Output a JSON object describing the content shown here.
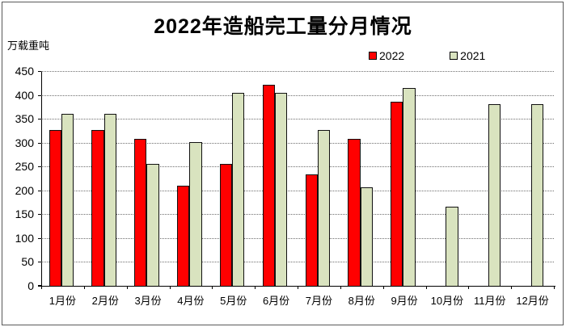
{
  "title": "2022年造船完工量分月情况",
  "unit_label": "万载重吨",
  "legend": {
    "items": [
      {
        "label": "2022",
        "color": "#ff0000"
      },
      {
        "label": "2021",
        "color": "#d9e3bf"
      }
    ]
  },
  "colors": {
    "series_2022": "#ff0000",
    "series_2021": "#d9e3bf",
    "bar_border": "#111111",
    "gridline": "#6e6e6e",
    "axis": "#000000"
  },
  "chart_data": {
    "type": "bar",
    "title": "2022年造船完工量分月情况",
    "ylabel": "万载重吨",
    "categories": [
      "1月份",
      "2月份",
      "3月份",
      "4月份",
      "5月份",
      "6月份",
      "7月份",
      "8月份",
      "9月份",
      "10月份",
      "11月份",
      "12月份"
    ],
    "series": [
      {
        "name": "2022",
        "color": "#ff0000",
        "values": [
          327,
          327,
          308,
          210,
          255,
          422,
          234,
          308,
          386,
          null,
          null,
          null
        ]
      },
      {
        "name": "2021",
        "color": "#d9e3bf",
        "values": [
          361,
          361,
          255,
          302,
          405,
          405,
          326,
          206,
          415,
          165,
          380,
          380
        ]
      }
    ],
    "ylim": [
      0,
      450
    ],
    "yticks": [
      0,
      50,
      100,
      150,
      200,
      250,
      300,
      350,
      400,
      450
    ],
    "grid": "horizontal-dotted",
    "legend_position": "top-right"
  }
}
